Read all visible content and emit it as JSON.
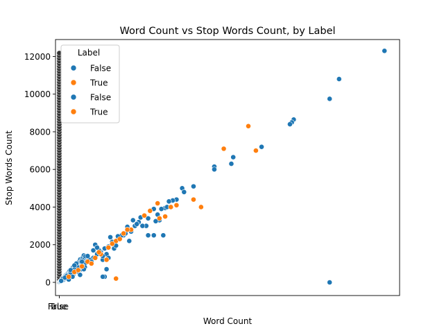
{
  "chart_data": {
    "type": "scatter",
    "title": "Word Count vs Stop Words Count, by Label",
    "xlabel": "Word Count",
    "ylabel": "Stop Words Count",
    "ylim": [
      -700,
      12900
    ],
    "xlim": [
      -2000,
      180000
    ],
    "yticks": [
      0,
      2000,
      4000,
      6000,
      8000,
      10000,
      12000
    ],
    "xtick_labels": [
      "False",
      "True"
    ],
    "grid": false,
    "legend": {
      "title": "Label",
      "placement": "top-left",
      "entries": [
        {
          "label": "False",
          "color": "#1f77b4"
        },
        {
          "label": "True",
          "color": "#ff7f0e"
        },
        {
          "label": "False",
          "color": "#1f77b4"
        },
        {
          "label": "True",
          "color": "#ff7f0e"
        }
      ]
    },
    "series": [
      {
        "name": "False",
        "color": "#1f77b4",
        "points": [
          [
            172000,
            12300
          ],
          [
            148000,
            10800
          ],
          [
            143000,
            9750
          ],
          [
            124000,
            8650
          ],
          [
            123000,
            8500
          ],
          [
            122000,
            8400
          ],
          [
            107000,
            7200
          ],
          [
            92000,
            6650
          ],
          [
            91000,
            6300
          ],
          [
            82000,
            6150
          ],
          [
            82000,
            6000
          ],
          [
            71000,
            5100
          ],
          [
            65000,
            5000
          ],
          [
            66000,
            4800
          ],
          [
            62000,
            4400
          ],
          [
            60000,
            4350
          ],
          [
            58000,
            4300
          ],
          [
            56000,
            3950
          ],
          [
            54000,
            3900
          ],
          [
            52000,
            3600
          ],
          [
            53000,
            3300
          ],
          [
            51000,
            3250
          ],
          [
            55000,
            2500
          ],
          [
            50000,
            2500
          ],
          [
            47000,
            2500
          ],
          [
            47000,
            3400
          ],
          [
            46000,
            3000
          ],
          [
            44000,
            3000
          ],
          [
            42000,
            3200
          ],
          [
            40000,
            3000
          ],
          [
            38000,
            2700
          ],
          [
            36000,
            2800
          ],
          [
            34000,
            2500
          ],
          [
            32000,
            2300
          ],
          [
            30000,
            2200
          ],
          [
            28000,
            2100
          ],
          [
            26000,
            1900
          ],
          [
            24000,
            1800
          ],
          [
            22000,
            1600
          ],
          [
            20000,
            1500
          ],
          [
            18000,
            1300
          ],
          [
            16000,
            1200
          ],
          [
            14000,
            1050
          ],
          [
            12000,
            900
          ],
          [
            10000,
            800
          ],
          [
            8000,
            700
          ],
          [
            6000,
            500
          ],
          [
            4000,
            350
          ],
          [
            2000,
            200
          ],
          [
            1000,
            80
          ],
          [
            37000,
            2200
          ],
          [
            39000,
            3300
          ],
          [
            33000,
            2500
          ],
          [
            29000,
            1800
          ],
          [
            25000,
            1500
          ],
          [
            21000,
            1700
          ],
          [
            17000,
            1100
          ],
          [
            11000,
            400
          ],
          [
            9000,
            1000
          ],
          [
            7000,
            300
          ],
          [
            23000,
            1200
          ],
          [
            19000,
            2000
          ],
          [
            27000,
            2400
          ],
          [
            15000,
            1400
          ],
          [
            13000,
            700
          ],
          [
            23000,
            1400
          ],
          [
            26000,
            1300
          ],
          [
            30000,
            1950
          ],
          [
            35000,
            2600
          ],
          [
            41000,
            3100
          ],
          [
            24000,
            300
          ],
          [
            23000,
            300
          ],
          [
            25000,
            700
          ],
          [
            143000,
            0
          ],
          [
            5000,
            150
          ],
          [
            3000,
            250
          ],
          [
            6000,
            650
          ],
          [
            8000,
            900
          ],
          [
            12000,
            1100
          ],
          [
            18000,
            1700
          ],
          [
            20000,
            1850
          ],
          [
            28000,
            2150
          ],
          [
            31000,
            2450
          ],
          [
            36000,
            2950
          ],
          [
            43000,
            3450
          ],
          [
            45000,
            3550
          ],
          [
            48000,
            3800
          ],
          [
            50000,
            3900
          ],
          [
            57000,
            4000
          ]
        ]
      },
      {
        "name": "True",
        "color": "#ff7f0e",
        "points": [
          [
            104000,
            7000
          ],
          [
            100000,
            8300
          ],
          [
            87000,
            7100
          ],
          [
            75000,
            4000
          ],
          [
            71000,
            4400
          ],
          [
            62000,
            4100
          ],
          [
            59000,
            4000
          ],
          [
            56000,
            3500
          ],
          [
            53000,
            3400
          ],
          [
            52000,
            4200
          ],
          [
            48000,
            3800
          ],
          [
            45000,
            3550
          ],
          [
            38000,
            2800
          ],
          [
            36000,
            2800
          ],
          [
            34000,
            2600
          ],
          [
            30000,
            2200
          ],
          [
            28000,
            2050
          ],
          [
            26000,
            1850
          ],
          [
            22000,
            1500
          ],
          [
            19000,
            1300
          ],
          [
            15000,
            1100
          ],
          [
            12000,
            850
          ],
          [
            8000,
            550
          ],
          [
            5000,
            300
          ],
          [
            30000,
            200
          ],
          [
            21000,
            1600
          ],
          [
            25000,
            1200
          ],
          [
            32000,
            2300
          ],
          [
            17000,
            1000
          ],
          [
            10000,
            650
          ]
        ]
      }
    ]
  }
}
